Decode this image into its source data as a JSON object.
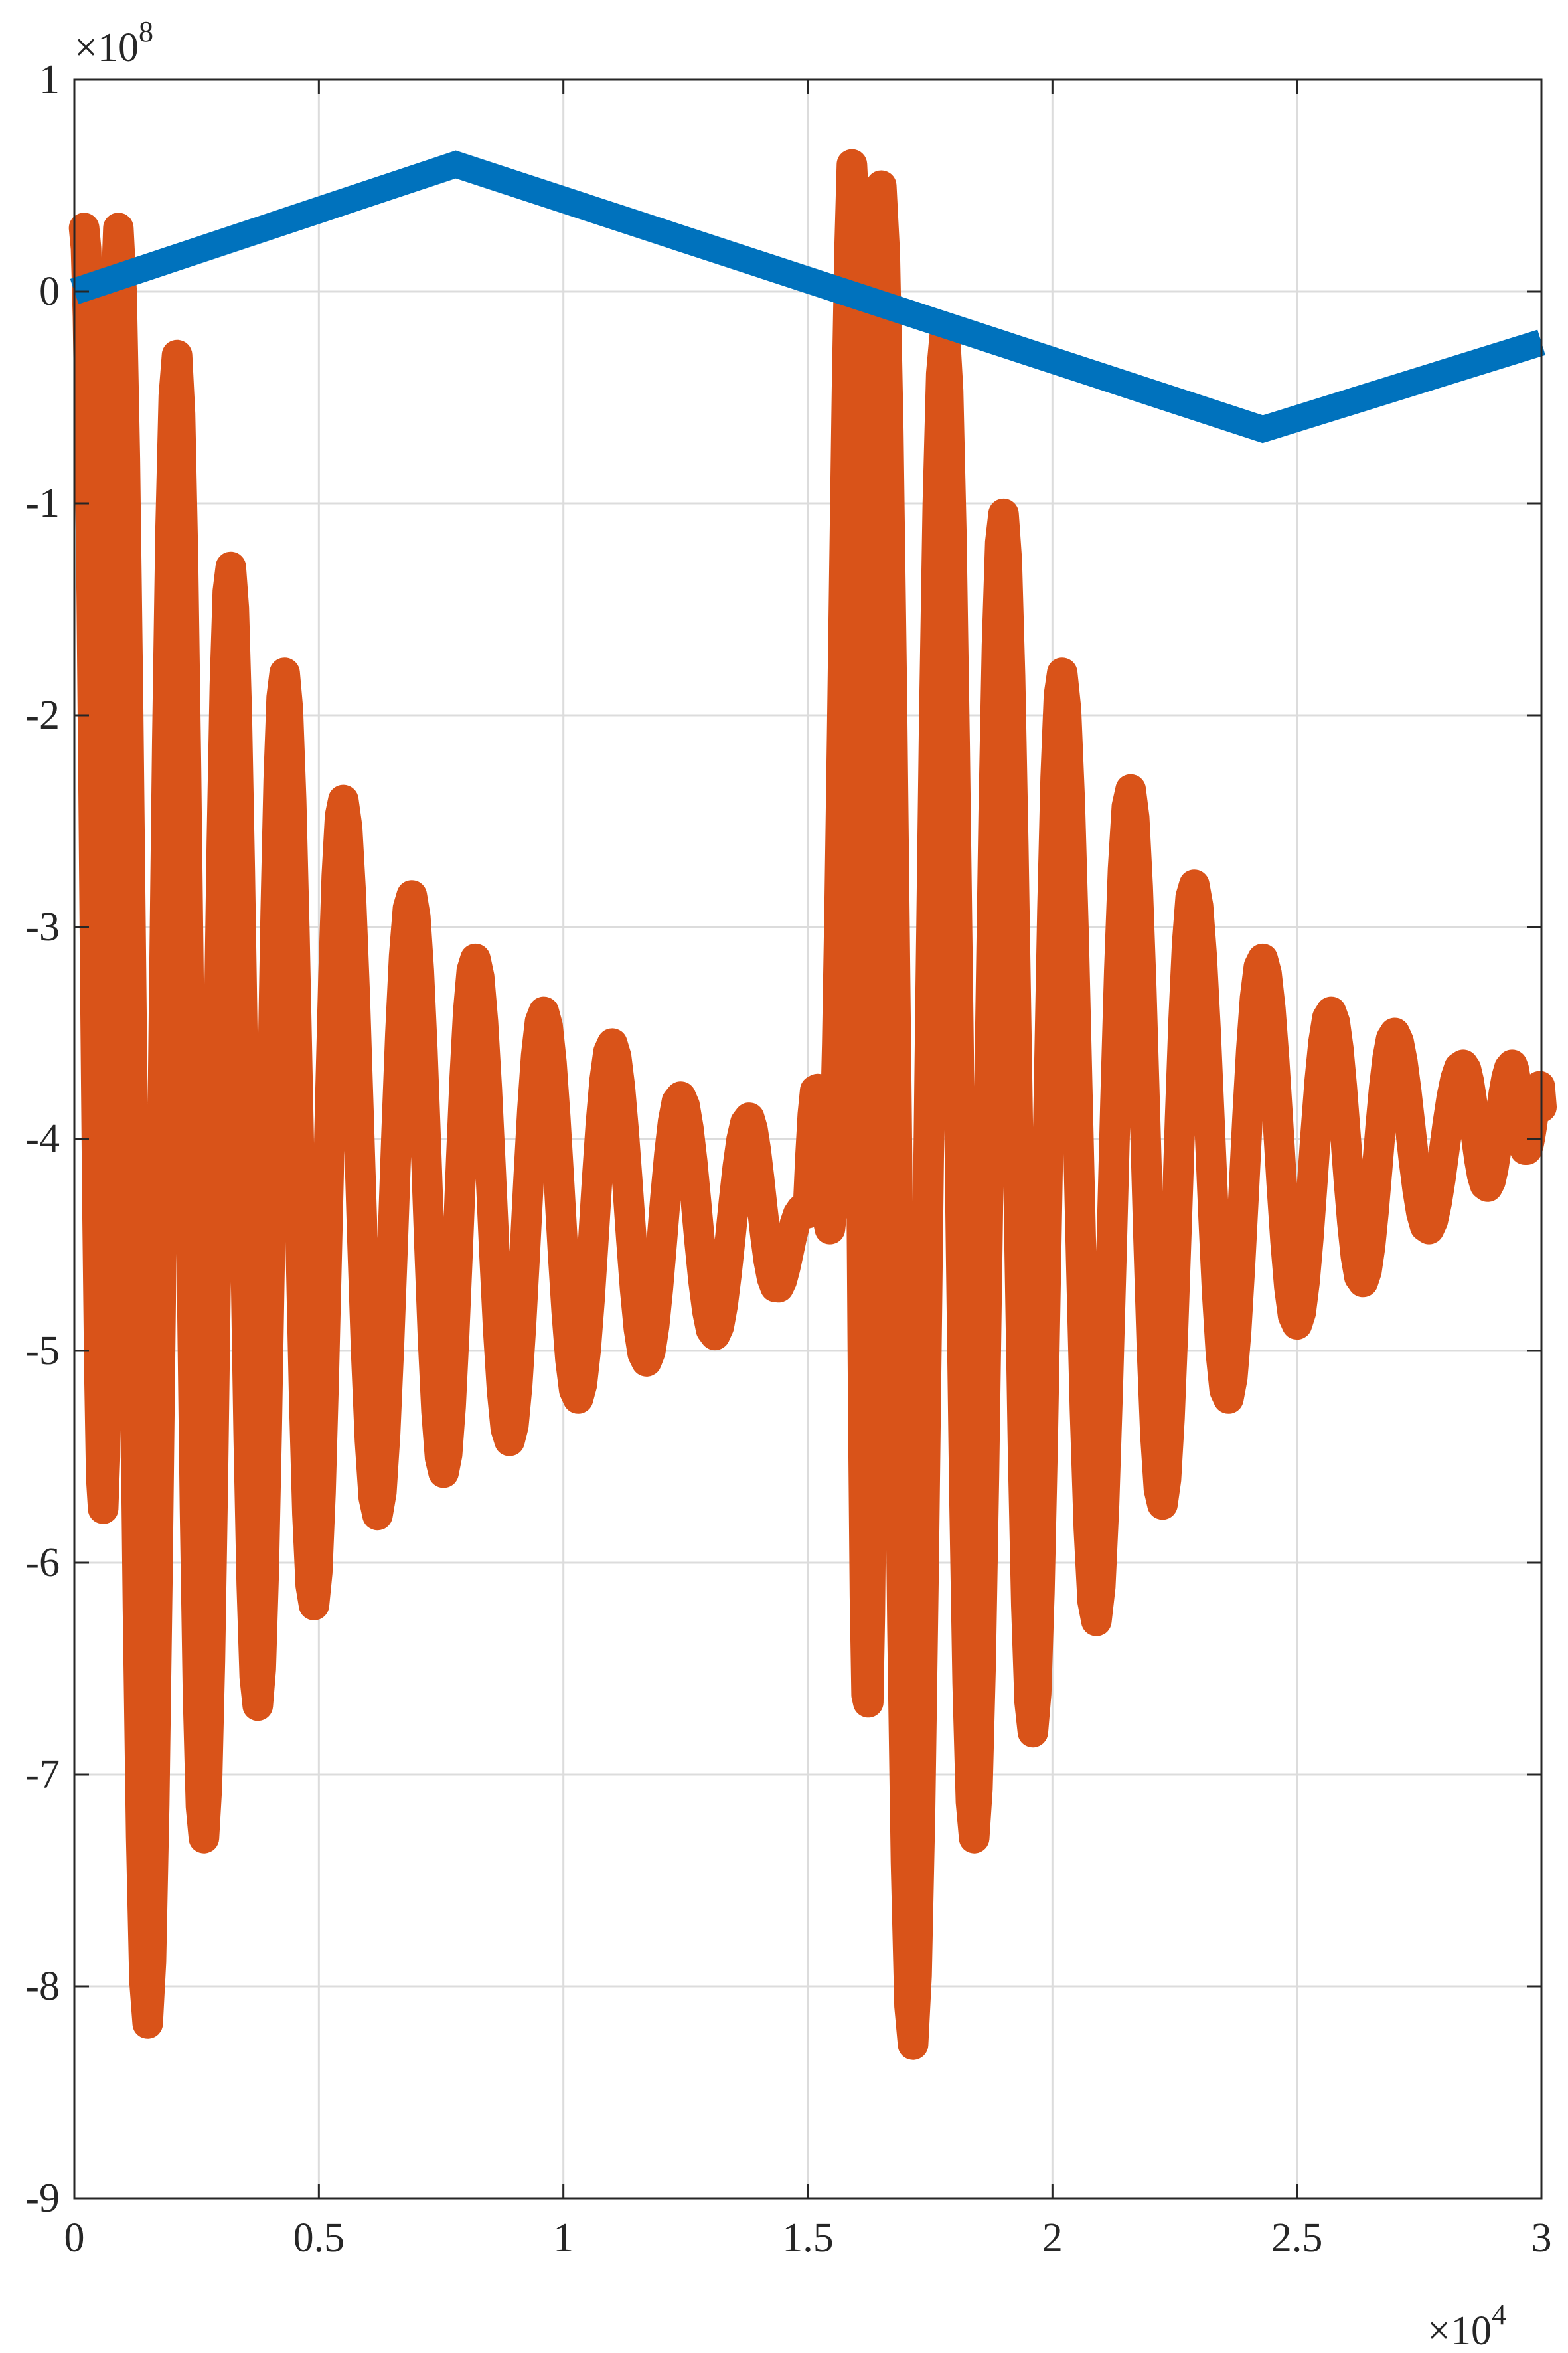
{
  "chart_data": {
    "type": "line",
    "title": "",
    "xlabel": "",
    "ylabel": "",
    "xlim": [
      0,
      3
    ],
    "ylim": [
      -9,
      1
    ],
    "x_exponent_label": {
      "base": "×10",
      "power": "4"
    },
    "y_exponent_label": {
      "base": "×10",
      "power": "8"
    },
    "x_ticks": [
      "0",
      "0.5",
      "1",
      "1.5",
      "2",
      "2.5",
      "3"
    ],
    "y_ticks": [
      "1",
      "0",
      "-1",
      "-2",
      "-3",
      "-4",
      "-5",
      "-6",
      "-7",
      "-8",
      "-9"
    ],
    "grid": true,
    "series": [
      {
        "color": "#0072BD",
        "x": [
          0,
          0.78,
          2.43,
          3.0
        ],
        "y": [
          0,
          0.6,
          -0.65,
          -0.24
        ]
      },
      {
        "color": "#D95319",
        "envelope_peaks": [
          {
            "x": 0.02,
            "top": 0.3,
            "bottom": -2.6
          },
          {
            "x": 0.09,
            "top": 0.3,
            "bottom": -8.6
          },
          {
            "x": 0.21,
            "top": -0.3,
            "bottom": -7.75
          },
          {
            "x": 0.32,
            "top": -1.3,
            "bottom": -6.85
          },
          {
            "x": 0.43,
            "top": -1.8,
            "bottom": -6.5
          },
          {
            "x": 0.55,
            "top": -2.4,
            "bottom": -5.9
          },
          {
            "x": 0.69,
            "top": -2.85,
            "bottom": -5.65
          },
          {
            "x": 0.82,
            "top": -3.15,
            "bottom": -5.5
          },
          {
            "x": 0.96,
            "top": -3.4,
            "bottom": -5.35
          },
          {
            "x": 1.1,
            "top": -3.55,
            "bottom": -5.1
          },
          {
            "x": 1.24,
            "top": -3.8,
            "bottom": -5.0
          },
          {
            "x": 1.38,
            "top": -3.9,
            "bottom": -4.85
          },
          {
            "x": 1.5,
            "top": -4.35,
            "bottom": -4.55
          },
          {
            "x": 1.59,
            "top": 0.6,
            "bottom": -4.3
          },
          {
            "x": 1.65,
            "top": 0.5,
            "bottom": -8.95
          },
          {
            "x": 1.78,
            "top": -0.2,
            "bottom": -7.6
          },
          {
            "x": 1.9,
            "top": -1.05,
            "bottom": -7.0
          },
          {
            "x": 2.02,
            "top": -1.8,
            "bottom": -6.6
          },
          {
            "x": 2.16,
            "top": -2.35,
            "bottom": -5.95
          },
          {
            "x": 2.29,
            "top": -2.8,
            "bottom": -5.5
          },
          {
            "x": 2.43,
            "top": -3.15,
            "bottom": -4.95
          },
          {
            "x": 2.57,
            "top": -3.4,
            "bottom": -4.8
          },
          {
            "x": 2.7,
            "top": -3.5,
            "bottom": -4.55
          },
          {
            "x": 2.84,
            "top": -3.65,
            "bottom": -4.3
          },
          {
            "x": 2.94,
            "top": -3.65,
            "bottom": -4.15
          },
          {
            "x": 3.0,
            "top": -3.75,
            "bottom": -3.95
          }
        ]
      }
    ]
  }
}
